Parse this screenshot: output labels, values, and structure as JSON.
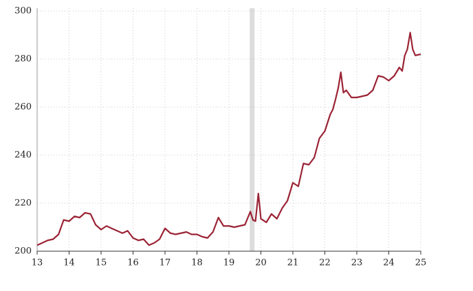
{
  "chart_data": {
    "type": "line",
    "x": [
      13,
      13.17,
      13.33,
      13.5,
      13.67,
      13.83,
      14,
      14.17,
      14.33,
      14.5,
      14.67,
      14.83,
      15,
      15.17,
      15.33,
      15.5,
      15.67,
      15.83,
      16,
      16.17,
      16.33,
      16.5,
      16.67,
      16.83,
      17,
      17.17,
      17.33,
      17.5,
      17.67,
      17.83,
      18,
      18.17,
      18.33,
      18.5,
      18.67,
      18.83,
      19,
      19.17,
      19.33,
      19.5,
      19.67,
      19.75,
      19.83,
      19.92,
      20,
      20.17,
      20.33,
      20.5,
      20.67,
      20.83,
      21,
      21.17,
      21.33,
      21.5,
      21.67,
      21.83,
      22,
      22.17,
      22.25,
      22.33,
      22.42,
      22.5,
      22.58,
      22.67,
      22.83,
      23,
      23.17,
      23.33,
      23.5,
      23.67,
      23.83,
      24,
      24.17,
      24.33,
      24.42,
      24.5,
      24.58,
      24.67,
      24.75,
      24.83,
      25
    ],
    "series": [
      {
        "color": "#9b2335",
        "values": [
          202.5,
          203.5,
          204.5,
          205,
          207,
          213,
          212.5,
          214.5,
          214,
          216,
          215.5,
          211,
          209,
          210.5,
          209.5,
          208.5,
          207.5,
          208.5,
          205.5,
          204.5,
          205,
          202.5,
          203.5,
          205,
          209.5,
          207.5,
          207,
          207.5,
          208,
          207,
          207,
          206,
          205.5,
          208,
          214,
          210.5,
          210.5,
          210,
          210.5,
          211,
          216.5,
          213,
          212.5,
          224,
          213.5,
          212,
          215.5,
          213.5,
          218,
          221,
          228.5,
          227,
          236.5,
          236,
          239,
          247,
          250,
          257,
          259,
          263,
          268,
          274.5,
          266,
          267,
          264,
          264,
          264.5,
          265,
          267,
          273,
          272.5,
          271,
          273,
          276.5,
          275,
          281.5,
          284,
          291,
          284,
          281.5,
          282
        ]
      }
    ],
    "shade": [
      19.65,
      19.8
    ],
    "xlim": [
      13,
      25
    ],
    "xticks": [
      13,
      14,
      15,
      16,
      17,
      18,
      19,
      20,
      21,
      22,
      23,
      24,
      25
    ],
    "ylim": [
      200,
      300
    ],
    "yticks": [
      200,
      220,
      240,
      260,
      280,
      300
    ],
    "grid": true
  }
}
